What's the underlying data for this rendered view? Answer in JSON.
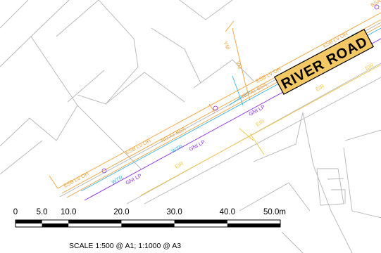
{
  "road_label": "RIVER ROAD",
  "utility_labels": {
    "esb_lv": "ESB LV OH",
    "gas": "GNI LP",
    "water": "WTR",
    "eir": "EIR",
    "vm": "VM",
    "bsa": "BSA",
    "nda": "NO AT BSA"
  },
  "colors": {
    "building_outline": "#b5b5b5",
    "esb": "#f2a23a",
    "water": "#37b6e6",
    "gas": "#8a2be2",
    "eir": "#f3c63f",
    "road_label_bg": "#f4c965"
  },
  "scale_bar": {
    "ticks": [
      "0",
      "5.0",
      "10.0",
      "20.0",
      "30.0",
      "40.0",
      "50.0m"
    ],
    "tick_values": [
      0,
      5,
      10,
      20,
      30,
      40,
      50
    ],
    "unit": "m"
  },
  "scale_note": "SCALE 1:500 @ A1;  1:1000 @ A3"
}
